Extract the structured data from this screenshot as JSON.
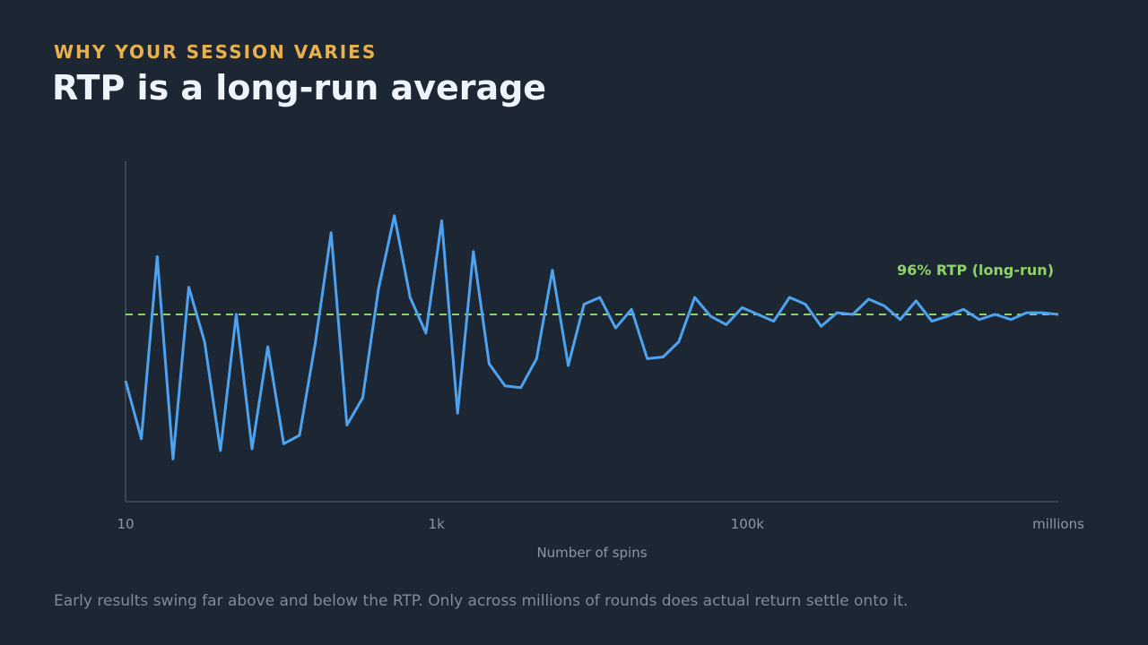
{
  "header": {
    "kicker": "WHY YOUR SESSION VARIES",
    "title": "RTP is a long-run average"
  },
  "caption": "Early results swing far above and below the RTP. Only across millions of rounds does actual return settle onto it.",
  "colors": {
    "background": "#1d2733",
    "line": "#4da3f0",
    "reference": "#8fd16a",
    "kicker": "#e9b04f",
    "axis": "#3a4756"
  },
  "chart_data": {
    "type": "line",
    "title": "",
    "xlabel": "Number of spins",
    "ylabel": "",
    "x_tick_labels": [
      "10",
      "1k",
      "100k",
      "millions"
    ],
    "grid": false,
    "reference_line": {
      "label": "96% RTP (long-run)",
      "value": 96,
      "style": "dashed"
    },
    "ylim": [
      85,
      105
    ],
    "series": [
      {
        "values": [
          92.1,
          88.7,
          99.4,
          87.5,
          97.6,
          94.4,
          88.0,
          96.0,
          88.1,
          94.1,
          88.4,
          88.9,
          94.3,
          100.8,
          89.5,
          91.1,
          97.5,
          101.8,
          97.0,
          94.9,
          101.5,
          90.2,
          99.7,
          93.1,
          91.8,
          91.7,
          93.4,
          98.6,
          93.0,
          96.6,
          97.0,
          95.2,
          96.3,
          93.4,
          93.5,
          94.4,
          97.0,
          95.9,
          95.4,
          96.4,
          96.0,
          95.6,
          97.0,
          96.6,
          95.3,
          96.1,
          96.0,
          96.9,
          96.5,
          95.7,
          96.8,
          95.6,
          95.9,
          96.3,
          95.7,
          96.0,
          95.7,
          96.1,
          96.1,
          96.0
        ]
      }
    ]
  }
}
